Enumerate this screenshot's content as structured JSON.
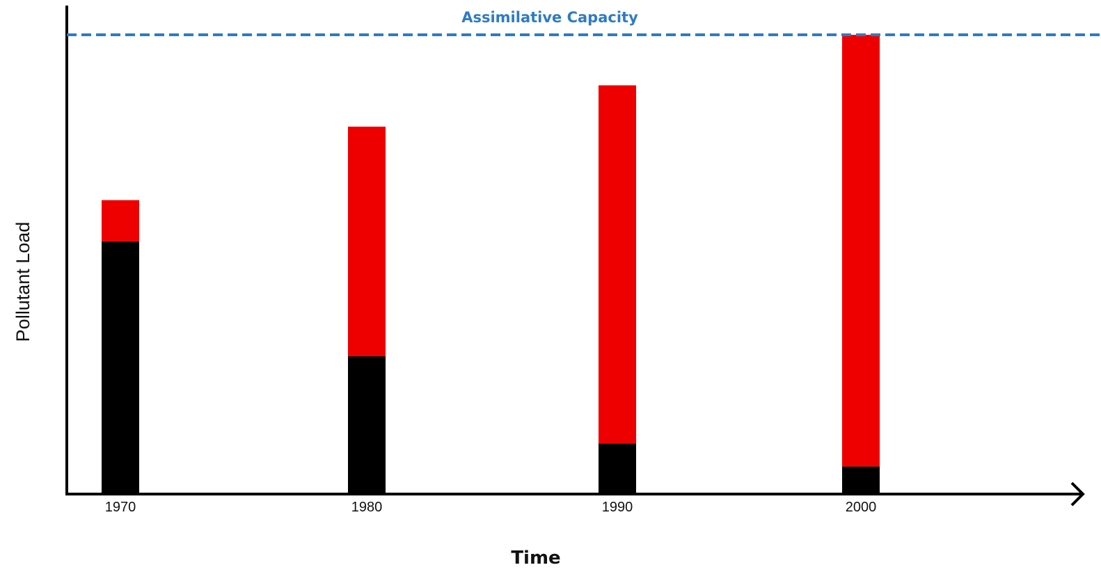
{
  "chart_data": {
    "type": "bar",
    "stacked": true,
    "title": "",
    "xlabel": "Time",
    "ylabel": "Pollutant Load",
    "categories": [
      "1970",
      "1980",
      "1990",
      "2000"
    ],
    "ylim": [
      0,
      100
    ],
    "series": [
      {
        "values": [
          55,
          30,
          11,
          6
        ],
        "color": "#000000"
      },
      {
        "values": [
          9,
          50,
          78,
          94
        ],
        "color": "#ee0000"
      }
    ],
    "reference_line": {
      "label": "Assimilative Capacity",
      "value": 100,
      "style": "dashed",
      "color": "#2e7bc4"
    },
    "grid": false,
    "legend": "none",
    "y_ticks_shown": false
  }
}
